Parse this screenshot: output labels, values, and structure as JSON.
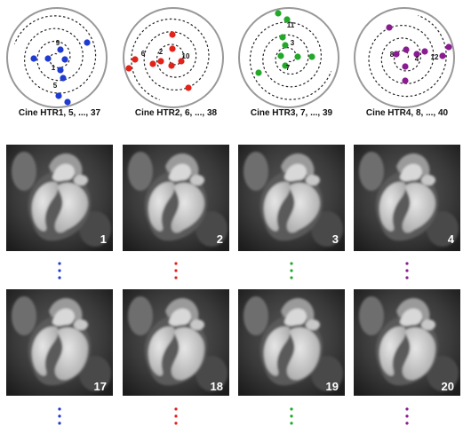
{
  "figure": {
    "columns": [
      {
        "caption": "Cine HTR1, 5, ..., 37",
        "color": "#1f3bd1",
        "labels": [
          "9",
          "1",
          "5"
        ],
        "frame_top": "1",
        "frame_bottom": "17"
      },
      {
        "caption": "Cine HTR2, 6, ..., 38",
        "color": "#e2231a",
        "labels": [
          "10",
          "2",
          "6"
        ],
        "frame_top": "2",
        "frame_bottom": "18"
      },
      {
        "caption": "Cine HTR3, 7, ..., 39",
        "color": "#23a829",
        "labels": [
          "7",
          "3",
          "11"
        ],
        "frame_top": "3",
        "frame_bottom": "19"
      },
      {
        "caption": "Cine HTR4, 8, ..., 40",
        "color": "#8a1b91",
        "labels": [
          "8",
          "4",
          "12"
        ],
        "frame_top": "4",
        "frame_bottom": "20"
      }
    ]
  }
}
